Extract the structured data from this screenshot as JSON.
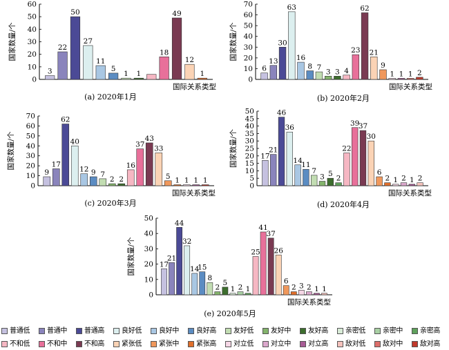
{
  "legend_labels": [
    "普通低",
    "普通中",
    "普通高",
    "良好低",
    "良好中",
    "良好高",
    "友好低",
    "友好中",
    "友好高",
    "亲密低",
    "亲密中",
    "亲密高",
    "不和低",
    "不和中",
    "不和高",
    "紧张低",
    "紧张中",
    "紧张高",
    "对立低",
    "对立中",
    "对立高",
    "敌对低",
    "敌对中",
    "敌对高"
  ],
  "colors": [
    "#c5c1e0",
    "#8a84bc",
    "#4b4a96",
    "#dcefef",
    "#a9c7e3",
    "#5b8cc2",
    "#c2ddb2",
    "#84b46c",
    "#3d6e2e",
    "#d9ecd8",
    "#a9d0a4",
    "#5fa15c",
    "#f6b7c3",
    "#e8709a",
    "#7a3a52",
    "#fbd3b5",
    "#f0985c",
    "#e06f2b",
    "#f6d7e6",
    "#dba8cc",
    "#a75b95",
    "#f5c2bc",
    "#dc6e6a",
    "#c0392b"
  ],
  "chart_data": [
    {
      "type": "bar",
      "caption": "(a) 2020年1月",
      "ylabel": "国家数量/个",
      "xlabel": "国际关系类型",
      "ylim": [
        0,
        60
      ],
      "yticks": [
        0,
        10,
        20,
        30,
        40,
        50,
        60
      ],
      "values": [
        3,
        22,
        50,
        27,
        11,
        5,
        1,
        1,
        4,
        18,
        49,
        12,
        1
      ],
      "labels": [
        "3",
        "22",
        "50",
        "27",
        "11",
        "5",
        "1",
        "1",
        "",
        "18",
        "49",
        "12",
        "1"
      ],
      "color_index": [
        0,
        1,
        2,
        3,
        4,
        5,
        6,
        8,
        12,
        13,
        14,
        15,
        17
      ]
    },
    {
      "type": "bar",
      "caption": "(b) 2020年2月",
      "ylabel": "国家数量/个",
      "xlabel": "国际关系类型",
      "ylim": [
        0,
        70
      ],
      "yticks": [
        0,
        10,
        20,
        30,
        40,
        50,
        60,
        70
      ],
      "values": [
        6,
        13,
        30,
        63,
        16,
        8,
        7,
        3,
        3,
        4,
        23,
        62,
        21,
        9,
        1,
        1,
        1,
        2
      ],
      "labels": [
        "6",
        "13",
        "30",
        "63",
        "16",
        "8",
        "7",
        "3",
        "3",
        "4",
        "23",
        "62",
        "21",
        "9",
        "1",
        "1",
        "1",
        "2"
      ],
      "color_index": [
        0,
        1,
        2,
        3,
        4,
        5,
        6,
        7,
        8,
        12,
        13,
        14,
        15,
        16,
        18,
        20,
        22,
        23
      ]
    },
    {
      "type": "bar",
      "caption": "(c) 2020年3月",
      "ylabel": "国家数量/个",
      "xlabel": "国际关系类型",
      "ylim": [
        0,
        70
      ],
      "yticks": [
        0,
        10,
        20,
        30,
        40,
        50,
        60,
        70
      ],
      "values": [
        9,
        17,
        62,
        40,
        12,
        9,
        7,
        2,
        2,
        16,
        37,
        43,
        33,
        5,
        1,
        1,
        1,
        1
      ],
      "labels": [
        "9",
        "17",
        "62",
        "40",
        "12",
        "9",
        "7",
        "2",
        "2",
        "16",
        "37",
        "43",
        "33",
        "5",
        "1",
        "1",
        "1",
        "1"
      ],
      "color_index": [
        0,
        1,
        2,
        3,
        4,
        5,
        6,
        7,
        8,
        12,
        13,
        14,
        15,
        16,
        17,
        18,
        20,
        23
      ]
    },
    {
      "type": "bar",
      "caption": "(d) 2020年4月",
      "ylabel": "国家数量/个",
      "xlabel": "国际关系类型",
      "ylim": [
        0,
        50
      ],
      "yticks": [
        0,
        5,
        10,
        15,
        20,
        25,
        30,
        35,
        40,
        45,
        50
      ],
      "values": [
        17,
        21,
        46,
        36,
        14,
        11,
        7,
        3,
        5,
        2,
        22,
        39,
        37,
        30,
        6,
        2,
        1,
        2,
        1,
        2
      ],
      "labels": [
        "17",
        "21",
        "46",
        "36",
        "14",
        "11",
        "7",
        "3",
        "5",
        "2",
        "22",
        "39",
        "37",
        "30",
        "6",
        "2",
        "1",
        "2",
        "1",
        "2"
      ],
      "color_index": [
        0,
        1,
        2,
        3,
        4,
        5,
        6,
        7,
        8,
        11,
        12,
        13,
        14,
        15,
        16,
        17,
        18,
        19,
        20,
        21
      ]
    },
    {
      "type": "bar",
      "caption": "(e) 2020年5月",
      "ylabel": "国家数量/个",
      "xlabel": "国际关系类型",
      "ylim": [
        0,
        50
      ],
      "yticks": [
        0,
        10,
        20,
        30,
        40,
        50
      ],
      "values": [
        17,
        21,
        44,
        32,
        14,
        15,
        8,
        2,
        5,
        1,
        2,
        1,
        25,
        41,
        37,
        26,
        6,
        2,
        3,
        2,
        1,
        1
      ],
      "labels": [
        "17",
        "21",
        "44",
        "32",
        "14",
        "15",
        "8",
        "2",
        "5",
        "1",
        "2",
        "1",
        "25",
        "41",
        "37",
        "26",
        "6",
        "2",
        "3",
        "2",
        "1",
        "1"
      ],
      "color_index": [
        0,
        1,
        2,
        3,
        4,
        5,
        6,
        7,
        8,
        9,
        10,
        11,
        12,
        13,
        14,
        15,
        16,
        17,
        18,
        19,
        20,
        21
      ]
    }
  ]
}
